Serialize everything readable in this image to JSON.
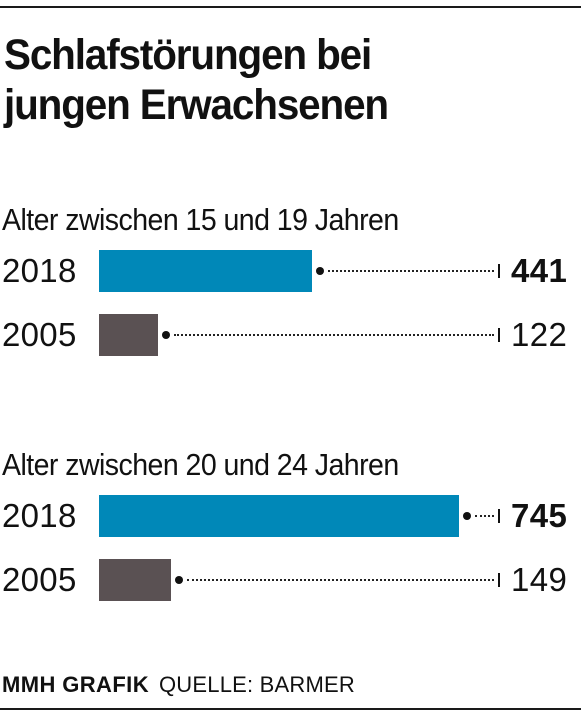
{
  "header": {
    "title_lines": [
      "Schlafstörungen bei",
      "jungen Erwachsenen"
    ]
  },
  "footer": {
    "brand": "MMH GRAFIK",
    "source": "QUELLE: BARMER"
  },
  "colors": {
    "2018": "#0088b8",
    "2005": "#5a5153"
  },
  "chart_data": {
    "type": "bar",
    "orientation": "horizontal",
    "title": "Schlafstörungen bei jungen Erwachsenen",
    "groups": [
      {
        "label": "Alter zwischen 15 und 19 Jahren",
        "rows": [
          {
            "year": "2018",
            "value": 441,
            "value_label": "441",
            "bold": true
          },
          {
            "year": "2005",
            "value": 122,
            "value_label": "122",
            "bold": false
          }
        ]
      },
      {
        "label": "Alter zwischen 20 und 24 Jahren",
        "rows": [
          {
            "year": "2018",
            "value": 745,
            "value_label": "745",
            "bold": true
          },
          {
            "year": "2005",
            "value": 149,
            "value_label": "149",
            "bold": false
          }
        ]
      }
    ],
    "source": "QUELLE: BARMER"
  }
}
